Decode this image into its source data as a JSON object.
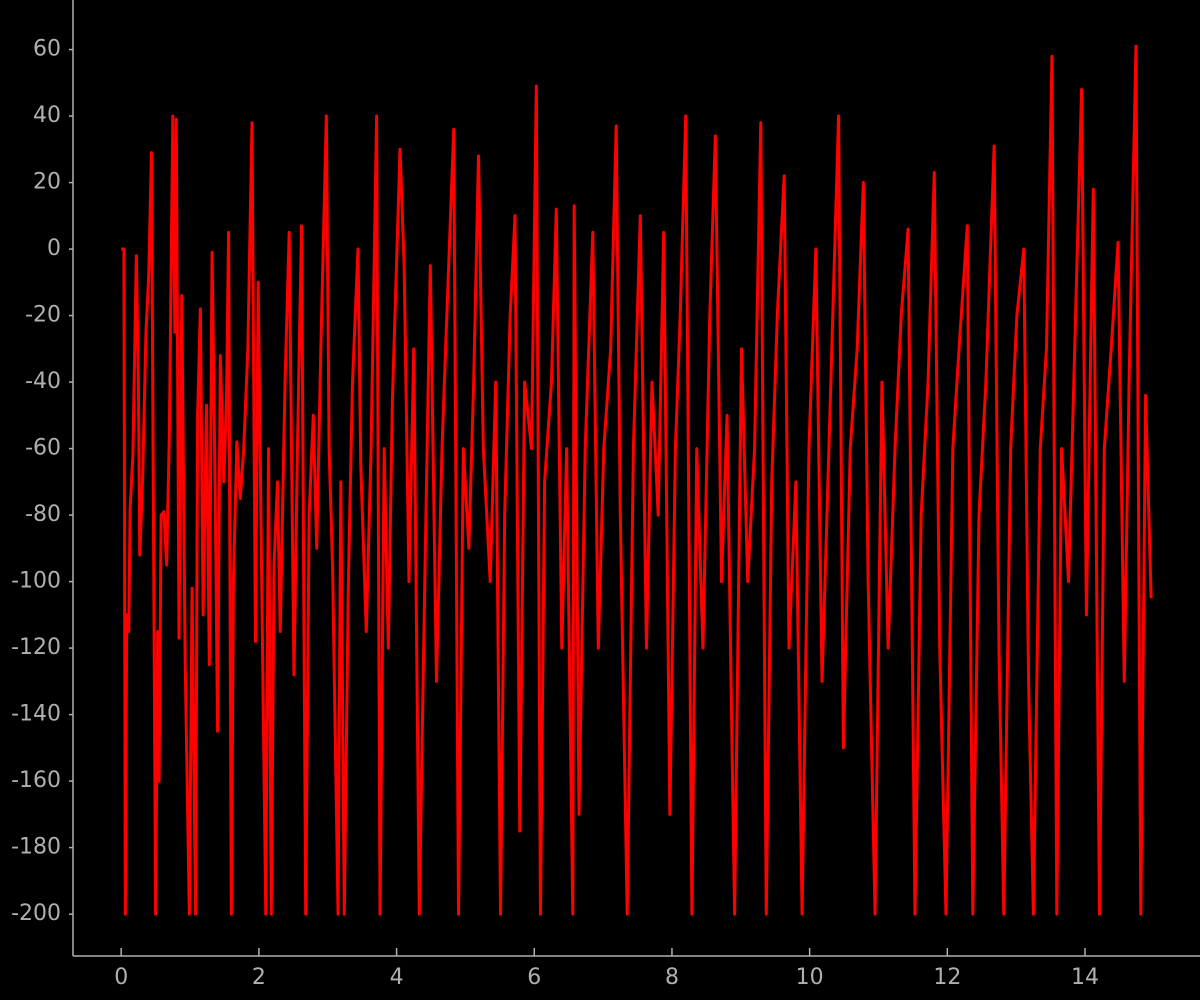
{
  "chart_data": {
    "type": "line",
    "color": "#ff0000",
    "x": [
      0,
      0.04,
      0.06,
      0.08,
      0.11,
      0.13,
      0.17,
      0.22,
      0.25,
      0.27,
      0.31,
      0.36,
      0.4,
      0.44,
      0.5,
      0.53,
      0.55,
      0.58,
      0.62,
      0.66,
      0.7,
      0.75,
      0.78,
      0.8,
      0.84,
      0.88,
      0.93,
      0.99,
      1.03,
      1.08,
      1.11,
      1.15,
      1.19,
      1.24,
      1.28,
      1.32,
      1.36,
      1.4,
      1.44,
      1.49,
      1.53,
      1.56,
      1.6,
      1.63,
      1.68,
      1.73,
      1.78,
      1.84,
      1.9,
      1.95,
      1.99,
      2.05,
      2.1,
      2.14,
      2.18,
      2.22,
      2.27,
      2.31,
      2.38,
      2.44,
      2.51,
      2.56,
      2.62,
      2.68,
      2.73,
      2.79,
      2.84,
      2.9,
      2.98,
      3.02,
      3.07,
      3.15,
      3.19,
      3.24,
      3.3,
      3.36,
      3.44,
      3.48,
      3.56,
      3.63,
      3.71,
      3.76,
      3.82,
      3.88,
      3.94,
      4.05,
      4.11,
      4.18,
      4.25,
      4.33,
      4.41,
      4.49,
      4.58,
      4.66,
      4.73,
      4.83,
      4.9,
      4.97,
      5.05,
      5.12,
      5.19,
      5.26,
      5.36,
      5.44,
      5.51,
      5.57,
      5.65,
      5.72,
      5.79,
      5.86,
      5.96,
      6.03,
      6.09,
      6.15,
      6.25,
      6.32,
      6.4,
      6.47,
      6.56,
      6.58,
      6.65,
      6.74,
      6.85,
      6.93,
      7.01,
      7.11,
      7.19,
      7.25,
      7.35,
      7.44,
      7.54,
      7.63,
      7.71,
      7.8,
      7.88,
      7.97,
      8.05,
      8.12,
      8.2,
      8.29,
      8.36,
      8.45,
      8.55,
      8.63,
      8.72,
      8.8,
      8.91,
      9.01,
      9.1,
      9.2,
      9.29,
      9.37,
      9.45,
      9.53,
      9.63,
      9.7,
      9.8,
      9.89,
      9.99,
      10.09,
      10.18,
      10.28,
      10.42,
      10.49,
      10.59,
      10.69,
      10.78,
      10.85,
      10.95,
      11.05,
      11.14,
      11.24,
      11.33,
      11.43,
      11.53,
      11.62,
      11.72,
      11.81,
      11.89,
      11.98,
      12.08,
      12.17,
      12.29,
      12.37,
      12.46,
      12.56,
      12.68,
      12.75,
      12.82,
      12.92,
      13.01,
      13.11,
      13.18,
      13.25,
      13.35,
      13.44,
      13.52,
      13.59,
      13.66,
      13.76,
      13.85,
      13.95,
      14.02,
      14.12,
      14.21,
      14.28,
      14.38,
      14.48,
      14.57,
      14.64,
      14.74,
      14.81,
      14.88,
      14.96
    ],
    "values": [
      0,
      0,
      -200,
      -110,
      -115,
      -78,
      -62,
      -2,
      -40,
      -92,
      -70,
      -25,
      -8,
      29,
      -200,
      -115,
      -160,
      -80,
      -79,
      -95,
      -55,
      40,
      -25,
      39,
      -117,
      -14,
      -125,
      -200,
      -102,
      -200,
      -50,
      -18,
      -110,
      -47,
      -125,
      -1,
      -64,
      -145,
      -32,
      -70,
      -45,
      5,
      -200,
      -100,
      -58,
      -75,
      -60,
      -30,
      38,
      -118,
      -10,
      -115,
      -200,
      -60,
      -200,
      -95,
      -70,
      -115,
      -40,
      5,
      -128,
      -60,
      7,
      -200,
      -80,
      -50,
      -90,
      -30,
      40,
      -60,
      -95,
      -200,
      -70,
      -200,
      -100,
      -40,
      0,
      -65,
      -115,
      -60,
      40,
      -200,
      -60,
      -120,
      -45,
      30,
      -5,
      -100,
      -30,
      -200,
      -100,
      -5,
      -130,
      -60,
      -20,
      36,
      -200,
      -60,
      -90,
      -40,
      28,
      -60,
      -100,
      -40,
      -200,
      -80,
      -20,
      10,
      -175,
      -40,
      -60,
      49,
      -200,
      -70,
      -40,
      12,
      -120,
      -60,
      -200,
      13,
      -170,
      -60,
      5,
      -120,
      -60,
      -30,
      37,
      -80,
      -200,
      -60,
      10,
      -120,
      -40,
      -80,
      5,
      -170,
      -60,
      -20,
      40,
      -200,
      -60,
      -120,
      -20,
      34,
      -100,
      -50,
      -200,
      -30,
      -100,
      -60,
      38,
      -200,
      -70,
      -20,
      22,
      -120,
      -70,
      -200,
      -60,
      0,
      -130,
      -60,
      40,
      -150,
      -60,
      -30,
      20,
      -100,
      -200,
      -40,
      -120,
      -60,
      -20,
      6,
      -200,
      -80,
      -40,
      23,
      -120,
      -200,
      -60,
      -30,
      7,
      -200,
      -80,
      -40,
      31,
      -120,
      -200,
      -60,
      -20,
      0,
      -130,
      -200,
      -60,
      -30,
      58,
      -200,
      -60,
      -100,
      -30,
      48,
      -110,
      18,
      -200,
      -60,
      -30,
      2,
      -130,
      -40,
      61,
      -200,
      -44,
      -105
    ],
    "xlim": [
      -0.7,
      15.67
    ],
    "ylim": [
      -212.6,
      74.9
    ],
    "xticks": [
      0,
      2,
      4,
      6,
      8,
      10,
      12,
      14
    ],
    "yticks": [
      -200,
      -180,
      -160,
      -140,
      -120,
      -100,
      -80,
      -60,
      -40,
      -20,
      0,
      20,
      40,
      60
    ]
  }
}
